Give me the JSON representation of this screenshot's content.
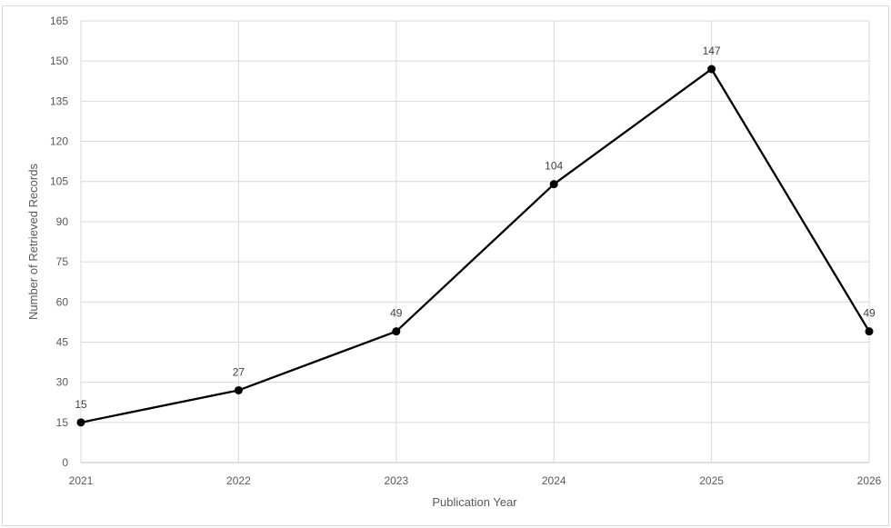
{
  "chart_data": {
    "type": "line",
    "title": "",
    "xlabel": "Publication Year",
    "ylabel": "Number of Retrieved Records",
    "categories": [
      "2021",
      "2022",
      "2023",
      "2024",
      "2025",
      "2026"
    ],
    "series": [
      {
        "values": [
          15,
          27,
          49,
          104,
          147,
          49
        ],
        "color": "#000000"
      }
    ],
    "ylim": [
      0,
      165
    ],
    "y_ticks": [
      0,
      15,
      30,
      45,
      60,
      75,
      90,
      105,
      120,
      135,
      150,
      165
    ],
    "grid": "on",
    "legend": "none",
    "data_labels": "on"
  }
}
